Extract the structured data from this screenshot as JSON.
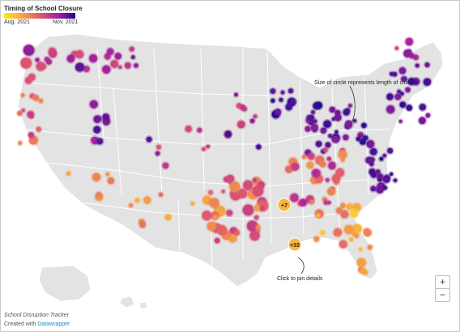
{
  "legend": {
    "title": "Timing of School Closure",
    "min_label": "Aug. 2021",
    "max_label": "Nov. 2021",
    "gradient": [
      "#fde725",
      "#f5a742",
      "#e05a6e",
      "#a8229c",
      "#1d0a8c"
    ]
  },
  "annotations": {
    "size_note": "Size of circle represents length of closure",
    "click_note": "Click to pin details"
  },
  "clusters": [
    "+7",
    "+33"
  ],
  "zoom": {
    "in_label": "+",
    "out_label": "−"
  },
  "footer": {
    "source": "School Disruption Tracker",
    "credit_prefix": "Created with ",
    "credit_link": "Datawrapper"
  },
  "colors": {
    "land": "#e3e3e3",
    "state_border": "#ffffff",
    "cluster_badge": "#f6b73c"
  }
}
